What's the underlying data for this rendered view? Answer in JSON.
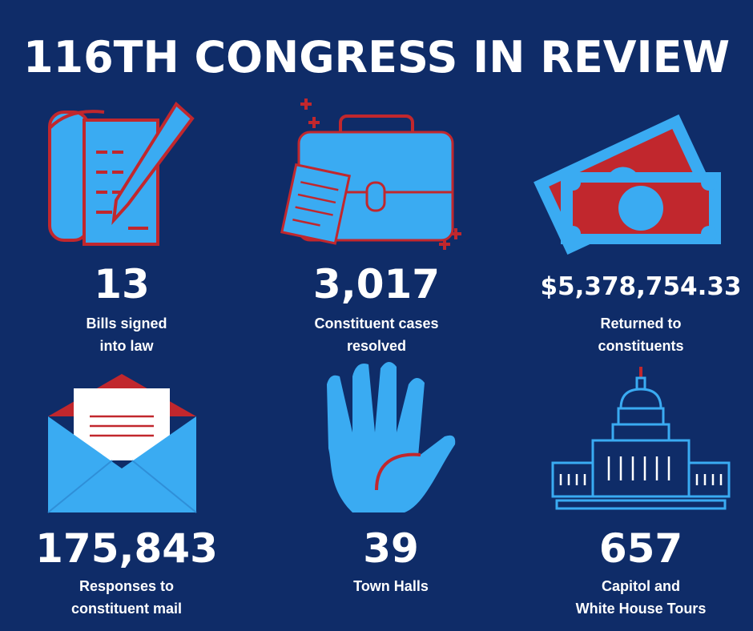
{
  "header": {
    "title": "116TH CONGRESS IN REVIEW"
  },
  "stats": [
    {
      "value": "13",
      "label": [
        "Bills signed",
        "into law"
      ]
    },
    {
      "value": "3,017",
      "label": [
        "Constituent cases",
        "resolved"
      ]
    },
    {
      "value": "$5,378,754.33",
      "label": [
        "Returned to",
        "constituents"
      ]
    },
    {
      "value": "175,843",
      "label": [
        "Responses to",
        "constituent mail"
      ]
    },
    {
      "value": "39",
      "label": [
        "Town Halls"
      ]
    },
    {
      "value": "657",
      "label": [
        "Capitol and",
        "White House Tours"
      ]
    }
  ]
}
